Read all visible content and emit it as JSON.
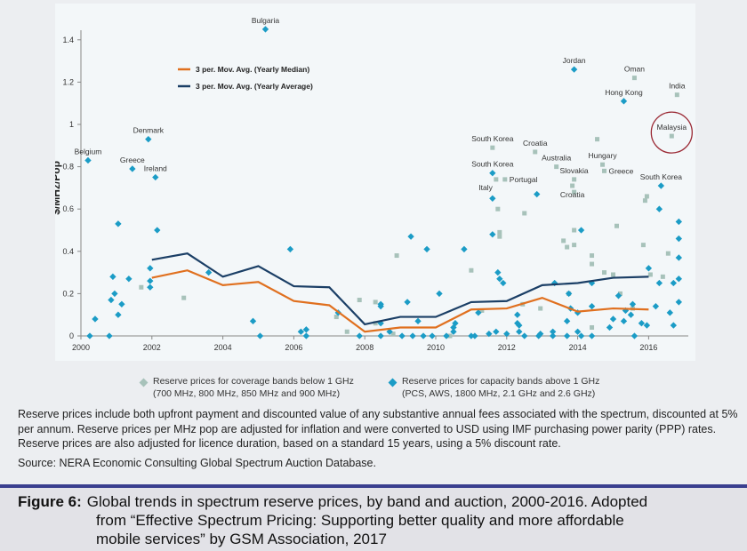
{
  "chart_data": {
    "type": "scatter",
    "ylabel": "$/MHz/Pop",
    "xlim": [
      2000,
      2017
    ],
    "ylim": [
      0,
      1.4
    ],
    "x_ticks": [
      "2000",
      "2002",
      "2004",
      "2006",
      "2008",
      "2010",
      "2012",
      "2014",
      "2016"
    ],
    "y_ticks": [
      "0",
      "0.2",
      "0.4",
      "0.6",
      "0.8",
      "1",
      "1.2",
      "1.4"
    ],
    "grid": false,
    "colors": {
      "median": "#e0701f",
      "average": "#1b3f66",
      "coverage": "#a7c2ba",
      "capacity": "#1b9cc6"
    },
    "lines": [
      {
        "name": "3 per. Mov. Avg. (Yearly Median)",
        "color": "#e0701f",
        "x": [
          2002,
          2003,
          2004,
          2005,
          2006,
          2007,
          2008,
          2009,
          2010,
          2011,
          2012,
          2013,
          2014,
          2015,
          2016
        ],
        "y": [
          0.275,
          0.31,
          0.24,
          0.255,
          0.165,
          0.145,
          0.02,
          0.04,
          0.04,
          0.125,
          0.13,
          0.18,
          0.115,
          0.13,
          0.125
        ]
      },
      {
        "name": "3 per. Mov. Avg. (Yearly Average)",
        "color": "#1b3f66",
        "x": [
          2002,
          2003,
          2004,
          2005,
          2006,
          2007,
          2008,
          2009,
          2010,
          2011,
          2012,
          2013,
          2014,
          2015,
          2016
        ],
        "y": [
          0.36,
          0.39,
          0.28,
          0.33,
          0.235,
          0.23,
          0.055,
          0.09,
          0.09,
          0.16,
          0.165,
          0.24,
          0.25,
          0.275,
          0.28
        ]
      }
    ],
    "series": [
      {
        "name": "Reserve prices for coverage bands below 1 GHz",
        "name2": "(700 MHz, 800 MHz, 850 MHz and 900 MHz)",
        "marker": "square",
        "points": [
          [
            2001.7,
            0.23
          ],
          [
            2002.9,
            0.18
          ],
          [
            2007.2,
            0.09
          ],
          [
            2007.5,
            0.02
          ],
          [
            2007.85,
            0.17
          ],
          [
            2008.3,
            0.16
          ],
          [
            2008.9,
            0.38
          ],
          [
            2008.3,
            0.06
          ],
          [
            2008.8,
            0.01
          ],
          [
            2010.4,
            0.0
          ],
          [
            2011.0,
            0.31
          ],
          [
            2011.3,
            0.12
          ],
          [
            2011.75,
            0.6
          ],
          [
            2011.8,
            0.49
          ],
          [
            2011.8,
            0.47
          ],
          [
            2012.5,
            0.58
          ],
          [
            2012.45,
            0.15
          ],
          [
            2012.95,
            0.13
          ],
          [
            2013.6,
            0.45
          ],
          [
            2013.7,
            0.42
          ],
          [
            2013.75,
            0.2
          ],
          [
            2013.9,
            0.68
          ],
          [
            2013.9,
            0.43
          ],
          [
            2013.9,
            0.5
          ],
          [
            2014.4,
            0.38
          ],
          [
            2014.4,
            0.34
          ],
          [
            2014.4,
            0.04
          ],
          [
            2014.75,
            0.3
          ],
          [
            2015.1,
            0.52
          ],
          [
            2015.0,
            0.29
          ],
          [
            2015.2,
            0.2
          ],
          [
            2015.55,
            0.13
          ],
          [
            2015.9,
            0.64
          ],
          [
            2015.95,
            0.66
          ],
          [
            2015.85,
            0.43
          ],
          [
            2016.05,
            0.29
          ],
          [
            2016.4,
            0.28
          ],
          [
            2016.55,
            0.39
          ],
          [
            2014.55,
            0.93
          ]
        ],
        "labeled": [
          {
            "label": "Oman",
            "x": 2015.6,
            "y": 1.22
          },
          {
            "label": "India",
            "x": 2016.8,
            "y": 1.14
          },
          {
            "label": "Malaysia",
            "x": 2016.65,
            "y": 0.945,
            "circled": true
          },
          {
            "label": "South Korea",
            "x": 2011.6,
            "y": 0.89
          },
          {
            "label": "Croatia",
            "x": 2012.8,
            "y": 0.87
          },
          {
            "label": "Italy",
            "x": 2011.7,
            "y": 0.74
          },
          {
            "label": "Portugal",
            "x": 2011.95,
            "y": 0.74
          },
          {
            "label": "Australia",
            "x": 2013.4,
            "y": 0.8
          },
          {
            "label": "Slovakia",
            "x": 2013.9,
            "y": 0.74
          },
          {
            "label": "Croatia",
            "x": 2013.85,
            "y": 0.71
          },
          {
            "label": "Hungary",
            "x": 2014.7,
            "y": 0.81
          },
          {
            "label": "Greece",
            "x": 2014.75,
            "y": 0.78
          }
        ]
      },
      {
        "name": "Reserve prices for capacity bands above 1 GHz",
        "name2": "(PCS, AWS, 1800 MHz, 2.1 GHz and 2.6 GHz)",
        "marker": "diamond",
        "points": [
          [
            2000.25,
            0.0
          ],
          [
            2000.4,
            0.08
          ],
          [
            2000.8,
            0.0
          ],
          [
            2000.85,
            0.17
          ],
          [
            2000.9,
            0.28
          ],
          [
            2000.95,
            0.2
          ],
          [
            2001.05,
            0.53
          ],
          [
            2001.05,
            0.1
          ],
          [
            2001.15,
            0.15
          ],
          [
            2001.35,
            0.27
          ],
          [
            2001.95,
            0.32
          ],
          [
            2001.95,
            0.26
          ],
          [
            2001.95,
            0.23
          ],
          [
            2002.15,
            0.5
          ],
          [
            2003.6,
            0.3
          ],
          [
            2004.85,
            0.07
          ],
          [
            2005.05,
            0.0
          ],
          [
            2005.9,
            0.41
          ],
          [
            2006.2,
            0.02
          ],
          [
            2006.35,
            0.03
          ],
          [
            2006.35,
            0.0
          ],
          [
            2007.25,
            0.11
          ],
          [
            2007.85,
            0.0
          ],
          [
            2008.45,
            0.15
          ],
          [
            2008.45,
            0.14
          ],
          [
            2008.45,
            0.06
          ],
          [
            2008.45,
            0.0
          ],
          [
            2008.7,
            0.02
          ],
          [
            2009.05,
            0.0
          ],
          [
            2009.2,
            0.16
          ],
          [
            2009.3,
            0.47
          ],
          [
            2009.35,
            0.0
          ],
          [
            2009.5,
            0.07
          ],
          [
            2009.65,
            0.0
          ],
          [
            2009.75,
            0.41
          ],
          [
            2009.9,
            0.0
          ],
          [
            2010.1,
            0.2
          ],
          [
            2010.3,
            0.0
          ],
          [
            2010.5,
            0.04
          ],
          [
            2010.5,
            0.02
          ],
          [
            2010.55,
            0.06
          ],
          [
            2010.8,
            0.41
          ],
          [
            2011.0,
            0.0
          ],
          [
            2011.1,
            0.0
          ],
          [
            2011.2,
            0.11
          ],
          [
            2011.5,
            0.01
          ],
          [
            2011.6,
            0.65
          ],
          [
            2011.6,
            0.48
          ],
          [
            2011.7,
            0.02
          ],
          [
            2011.75,
            0.3
          ],
          [
            2011.8,
            0.27
          ],
          [
            2011.9,
            0.25
          ],
          [
            2012.0,
            0.01
          ],
          [
            2012.3,
            0.06
          ],
          [
            2012.3,
            0.1
          ],
          [
            2012.35,
            0.05
          ],
          [
            2012.35,
            0.02
          ],
          [
            2012.5,
            0.0
          ],
          [
            2012.85,
            0.67
          ],
          [
            2012.9,
            0.0
          ],
          [
            2012.95,
            0.01
          ],
          [
            2013.3,
            0.0
          ],
          [
            2013.3,
            0.02
          ],
          [
            2013.35,
            0.25
          ],
          [
            2013.7,
            0.0
          ],
          [
            2013.7,
            0.07
          ],
          [
            2013.75,
            0.2
          ],
          [
            2013.8,
            0.13
          ],
          [
            2014.1,
            0.0
          ],
          [
            2014.0,
            0.11
          ],
          [
            2014.0,
            0.02
          ],
          [
            2014.1,
            0.5
          ],
          [
            2014.4,
            0.25
          ],
          [
            2014.4,
            0.14
          ],
          [
            2014.4,
            0.0
          ],
          [
            2014.9,
            0.04
          ],
          [
            2015.0,
            0.08
          ],
          [
            2015.15,
            0.19
          ],
          [
            2015.3,
            0.07
          ],
          [
            2015.35,
            0.12
          ],
          [
            2015.5,
            0.1
          ],
          [
            2015.55,
            0.15
          ],
          [
            2015.6,
            0.0
          ],
          [
            2015.8,
            0.06
          ],
          [
            2015.95,
            0.05
          ],
          [
            2016.0,
            0.32
          ],
          [
            2016.2,
            0.14
          ],
          [
            2016.3,
            0.25
          ],
          [
            2016.3,
            0.6
          ],
          [
            2016.7,
            0.25
          ],
          [
            2016.85,
            0.54
          ],
          [
            2016.85,
            0.46
          ],
          [
            2016.85,
            0.37
          ],
          [
            2016.85,
            0.27
          ],
          [
            2016.85,
            0.16
          ],
          [
            2016.7,
            0.05
          ],
          [
            2016.6,
            0.11
          ]
        ],
        "labeled": [
          {
            "label": "Bulgaria",
            "x": 2005.2,
            "y": 1.45
          },
          {
            "label": "Jordan",
            "x": 2013.9,
            "y": 1.26
          },
          {
            "label": "Hong Kong",
            "x": 2015.3,
            "y": 1.11
          },
          {
            "label": "Belgium",
            "x": 2000.2,
            "y": 0.83
          },
          {
            "label": "Denmark",
            "x": 2001.9,
            "y": 0.93
          },
          {
            "label": "Greece",
            "x": 2001.45,
            "y": 0.79
          },
          {
            "label": "Ireland",
            "x": 2002.1,
            "y": 0.75
          },
          {
            "label": "South Korea",
            "x": 2011.6,
            "y": 0.77
          },
          {
            "label": "South Korea",
            "x": 2016.35,
            "y": 0.71
          }
        ]
      }
    ]
  },
  "note": "Reserve prices include both upfront payment and discounted value of any substantive annual fees associated with the spectrum, discounted at 5% per annum. Reserve prices per MHz pop are adjusted for inflation and were converted to USD using IMF purchasing power parity (PPP) rates. Reserve prices are also adjusted for licence duration, based on a standard 15 years, using a 5% discount rate.",
  "source": "Source: NERA Economic Consulting Global Spectrum Auction Database.",
  "caption": {
    "label": "Figure 6:",
    "lines": [
      "Global trends in spectrum reserve prices, by band and auction, 2000-2016. Adopted",
      "from “Effective Spectrum Pricing: Supporting better quality and more affordable",
      "mobile services” by GSM Association, 2017"
    ]
  }
}
